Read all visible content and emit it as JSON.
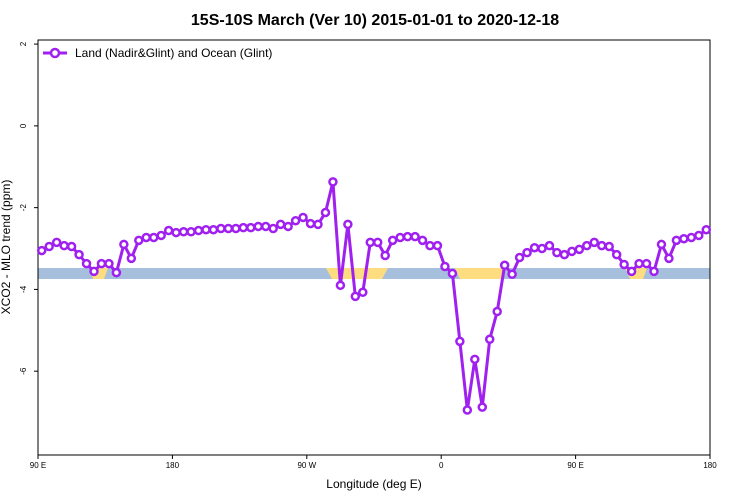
{
  "chart_data": {
    "type": "line",
    "title": "15S-10S March (Ver 10)   2015-01-01 to 2020-12-18",
    "x_label": "Longitude (deg E)",
    "y_label": "XCO2 - MLO trend (ppm)",
    "xlim": [
      90,
      540
    ],
    "xticks": [
      {
        "value": 90,
        "label": "90 E"
      },
      180,
      {
        "value": 270,
        "label": "90 W"
      },
      {
        "value": 360,
        "label": "0"
      },
      {
        "value": 450,
        "label": "90 E"
      },
      {
        "value": 540,
        "label": "180"
      }
    ],
    "ylim": [
      -8.05,
      2.1
    ],
    "yticks": [
      2,
      0,
      -2,
      -4,
      -6
    ],
    "legend": "top-left",
    "x": [
      92.5,
      97.5,
      102.5,
      107.5,
      112.5,
      117.5,
      122.5,
      127.5,
      132.5,
      137.5,
      142.5,
      147.5,
      152.5,
      157.5,
      162.5,
      167.5,
      172.5,
      177.5,
      182.5,
      187.5,
      192.5,
      197.5,
      202.5,
      207.5,
      212.5,
      217.5,
      222.5,
      227.5,
      232.5,
      237.5,
      242.5,
      247.5,
      252.5,
      257.5,
      262.5,
      267.5,
      272.5,
      277.5,
      282.5,
      287.5,
      292.5,
      297.5,
      302.5,
      307.5,
      312.5,
      317.5,
      322.5,
      327.5,
      332.5,
      337.5,
      342.5,
      347.5,
      352.5,
      357.5,
      362.5,
      367.5,
      372.5,
      377.5,
      382.5,
      387.5,
      392.5,
      397.5,
      402.5,
      407.5,
      412.5,
      417.5,
      422.5,
      427.5,
      432.5,
      437.5,
      442.5,
      447.5,
      452.5,
      457.5,
      462.5,
      467.5,
      472.5,
      477.5,
      482.5,
      487.5,
      492.5,
      497.5,
      502.5,
      507.5,
      512.5,
      517.5,
      522.5,
      527.5,
      532.5,
      537.5
    ],
    "series": [
      {
        "name": "Land (Nadir&Glint) and Ocean (Glint)",
        "color": "#a020f0",
        "values": [
          -3.05,
          -2.95,
          -2.85,
          -2.93,
          -2.95,
          -3.15,
          -3.37,
          -3.56,
          -3.37,
          -3.37,
          -3.59,
          -2.9,
          -3.24,
          -2.8,
          -2.73,
          -2.73,
          -2.68,
          -2.56,
          -2.61,
          -2.59,
          -2.59,
          -2.56,
          -2.54,
          -2.54,
          -2.51,
          -2.51,
          -2.51,
          -2.49,
          -2.49,
          -2.46,
          -2.46,
          -2.51,
          -2.41,
          -2.46,
          -2.32,
          -2.24,
          -2.39,
          -2.41,
          -2.12,
          -1.37,
          -3.9,
          -2.41,
          -4.17,
          -4.07,
          -2.85,
          -2.85,
          -3.17,
          -2.8,
          -2.73,
          -2.71,
          -2.71,
          -2.8,
          -2.93,
          -2.93,
          -3.44,
          -3.61,
          -5.27,
          -6.95,
          -5.71,
          -6.88,
          -5.22,
          -4.54,
          -3.41,
          -3.63,
          -3.22,
          -3.1,
          -2.98,
          -3.0,
          -2.93,
          -3.1,
          -3.15,
          -3.07,
          -3.02,
          -2.93,
          -2.85,
          -2.93,
          -2.95,
          -3.15,
          -3.39,
          -3.56,
          -3.37,
          -3.37,
          -3.56,
          -2.9,
          -3.24,
          -2.8,
          -2.76,
          -2.73,
          -2.68,
          -2.54
        ]
      }
    ]
  }
}
